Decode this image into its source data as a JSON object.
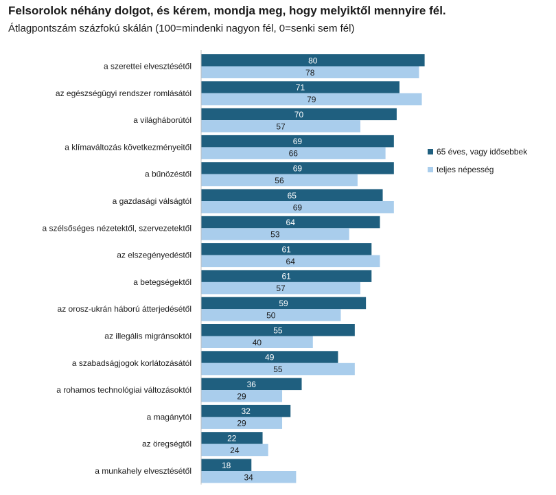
{
  "chart_data": {
    "type": "bar",
    "orientation": "horizontal",
    "title": "Felsorolok néhány dolgot, és kérem, mondja meg, hogy melyiktől mennyire fél.",
    "subtitle": "Átlagpontszám százfokú skálán (100=mindenki nagyon fél, 0=senki sem fél)",
    "categories": [
      "a szerettei elvesztésétől",
      "az egészségügyi rendszer romlásától",
      "a világháborútól",
      "a klímaváltozás következményeitől",
      "a bűnözéstől",
      "a gazdasági válságtól",
      "a szélsőséges nézetektől, szervezetektől",
      "az elszegényedéstől",
      "a betegségektől",
      "az orosz-ukrán háború átterjedésétől",
      "az illegális migránsoktól",
      "a szabadságjogok korlátozásától",
      "a rohamos technológiai változásoktól",
      "a magánytól",
      "az öregségtől",
      "a munkahely elvesztésétől"
    ],
    "series": [
      {
        "name": "65 éves, vagy idősebbek",
        "color": "#1f5f7f",
        "values": [
          80,
          71,
          70,
          69,
          69,
          65,
          64,
          61,
          61,
          59,
          55,
          49,
          36,
          32,
          22,
          18
        ]
      },
      {
        "name": "teljes népesség",
        "color": "#a9cdec",
        "values": [
          78,
          79,
          57,
          66,
          56,
          69,
          53,
          64,
          57,
          50,
          40,
          55,
          29,
          29,
          24,
          34
        ]
      }
    ],
    "xlim": [
      0,
      100
    ],
    "grid": false,
    "legend_position": "right"
  }
}
